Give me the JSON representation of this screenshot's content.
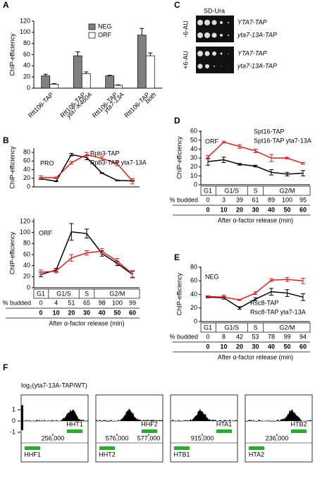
{
  "panels": [
    "A",
    "B",
    "C",
    "D",
    "E",
    "F"
  ],
  "chart_data": [
    {
      "type": "bar",
      "ylabel": "ChIP-efficiency",
      "categories": [
        [
          "Rtt106-TAP"
        ],
        [
          "Rtt106-TAP",
          "yta7-K460A"
        ],
        [
          "Rtt106-TAP",
          "yta7-13A"
        ],
        [
          "Rtt106-TAP",
          "both"
        ]
      ],
      "series": [
        {
          "name": "NEG",
          "color": "#808080",
          "values": [
            22,
            58,
            22,
            95
          ],
          "errors": [
            3,
            7,
            1,
            12
          ]
        },
        {
          "name": "ORF",
          "color": "#ffffff",
          "values": [
            7,
            26,
            5,
            58
          ],
          "errors": [
            1,
            3,
            1,
            5
          ]
        }
      ],
      "ylim": [
        0,
        120
      ],
      "yticks": [
        0,
        20,
        40,
        60,
        80,
        100,
        120
      ]
    },
    {
      "type": "line",
      "ylabel": "ChIP-efficiency",
      "label": "PRO",
      "x": [
        0,
        10,
        20,
        30,
        40,
        50,
        60
      ],
      "series": [
        {
          "name": "Rpb3-TAP",
          "color": "#000000",
          "values": [
            19,
            13,
            75,
            68,
            32,
            15,
            14
          ],
          "errors": [
            2,
            1,
            3,
            5,
            1,
            1,
            1
          ]
        },
        {
          "name": "Rpb3-TAP yta7-13A",
          "color": "#e0201b",
          "values": [
            22,
            21,
            56,
            75,
            66,
            54,
            13
          ],
          "errors": [
            4,
            2,
            3,
            5,
            4,
            5,
            6
          ]
        }
      ],
      "ylim": [
        0,
        90
      ],
      "yticks": [
        0,
        20,
        40,
        60,
        80
      ]
    },
    {
      "type": "line",
      "ylabel": "ChIP-efficiency",
      "label": "ORF",
      "x": [
        0,
        10,
        20,
        30,
        40,
        50,
        60
      ],
      "series": [
        {
          "color": "#000000",
          "values": [
            24,
            32,
            101,
            98,
            62,
            44,
            24
          ],
          "errors": [
            4,
            3,
            15,
            8,
            5,
            4,
            6
          ]
        },
        {
          "color": "#e0201b",
          "values": [
            28,
            30,
            54,
            63,
            66,
            48,
            25
          ],
          "errors": [
            4,
            3,
            6,
            4,
            5,
            5,
            6
          ]
        }
      ],
      "ylim": [
        0,
        125
      ],
      "yticks": [
        0,
        20,
        40,
        60,
        80,
        100,
        120
      ],
      "phases": [
        "G1",
        "G1/S",
        "S",
        "G2/M"
      ],
      "budded_label": "% budded",
      "budded": [
        0,
        4,
        51,
        65,
        98,
        100,
        99
      ],
      "xlabel": "After α-factor release (min)"
    },
    {
      "type": "line",
      "ylabel": "ChIP-efficiency",
      "label": "ORF",
      "x": [
        0,
        10,
        20,
        30,
        40,
        50,
        60
      ],
      "series": [
        {
          "name": "Spt16-TAP",
          "color": "#000000",
          "values": [
            26,
            28,
            23,
            21,
            14,
            12,
            13
          ],
          "errors": [
            4,
            3,
            1,
            1,
            3,
            2,
            3
          ]
        },
        {
          "name": "Spt16-TAP yta7-13A",
          "color": "#e0201b",
          "values": [
            31,
            48,
            43,
            38,
            30,
            30,
            24
          ],
          "errors": [
            2,
            1,
            2,
            2,
            4,
            1,
            1
          ]
        }
      ],
      "ylim": [
        0,
        61
      ],
      "yticks": [
        0,
        10,
        20,
        30,
        40,
        50,
        60
      ],
      "phases": [
        "G1",
        "G1/S",
        "S",
        "G2/M"
      ],
      "budded_label": "% budded",
      "budded": [
        0,
        3,
        39,
        61,
        89,
        100,
        95
      ],
      "xlabel": "After α-factor release (min)"
    },
    {
      "type": "line",
      "ylabel": "ChIP-efficiency",
      "label": "NEG",
      "x": [
        0,
        10,
        20,
        30,
        40,
        50,
        60
      ],
      "series": [
        {
          "name": "Rsc8-TAP",
          "color": "#000000",
          "values": [
            36,
            35,
            20,
            33,
            44,
            42,
            36
          ],
          "errors": [
            1,
            2,
            2,
            2,
            5,
            5,
            5
          ]
        },
        {
          "name": "Rsc8-TAP yta7-13A",
          "color": "#e0201b",
          "values": [
            37,
            36,
            32,
            42,
            61,
            62,
            60
          ],
          "errors": [
            1,
            3,
            1,
            2,
            2,
            3,
            4
          ]
        }
      ],
      "ylim": [
        0,
        81
      ],
      "yticks": [
        0,
        20,
        40,
        60,
        80
      ],
      "phases": [
        "G1",
        "G1/S",
        "S",
        "G2/M"
      ],
      "budded_label": "% budded",
      "budded": [
        0,
        8,
        42,
        53,
        78,
        99,
        94
      ],
      "xlabel": "After α-factor release (min)"
    },
    {
      "type": "track",
      "ylabel": "log₂(yta7-13A-TAP/WT)",
      "ylim": [
        -1,
        2
      ],
      "yticks": [
        1,
        0,
        -1
      ],
      "regions": [
        {
          "coords": [
            "256,000"
          ],
          "genes_top": [
            "HHT1"
          ],
          "genes_bottom": [
            "HHF1"
          ]
        },
        {
          "coords": [
            "576,000",
            "577,000"
          ],
          "genes_top": [
            "HHF2"
          ],
          "genes_bottom": [
            "HHT2"
          ]
        },
        {
          "coords": [
            "915,000"
          ],
          "genes_top": [
            "HTA1"
          ],
          "genes_bottom": [
            "HTB1"
          ]
        },
        {
          "coords": [
            "236,000"
          ],
          "genes_top": [
            "HTB2"
          ],
          "genes_bottom": [
            "HTA2"
          ]
        }
      ]
    }
  ],
  "spot_assay": {
    "title": "SD-Ura",
    "rows": [
      {
        "condition": "-6-AU",
        "strains": [
          "YTA7-TAP",
          "yta7-13A-TAP"
        ]
      },
      {
        "condition": "+6-AU",
        "strains": [
          "YTA7-TAP",
          "yta7-13A-TAP"
        ]
      }
    ]
  }
}
